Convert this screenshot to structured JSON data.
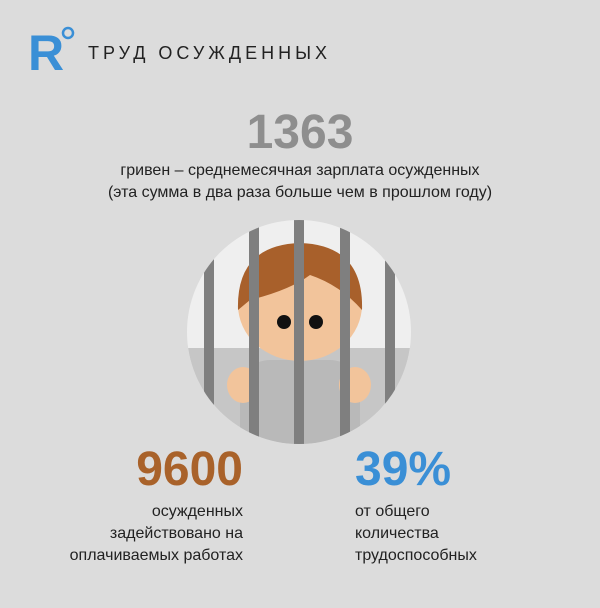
{
  "header": {
    "logo": "R",
    "title": "ТРУД ОСУЖДЕННЫХ"
  },
  "stats": [
    {
      "value": "1363",
      "lines": [
        "гривен – среднемесячная зарплата осужденных",
        "(эта сумма в два раза больше чем в прошлом году)"
      ]
    },
    {
      "value": "9600",
      "lines": [
        "осужденных",
        "задействовано на",
        "оплачиваемых работах"
      ]
    },
    {
      "value": "39%",
      "lines": [
        "от общего",
        "количества",
        "трудоспособных"
      ]
    }
  ]
}
